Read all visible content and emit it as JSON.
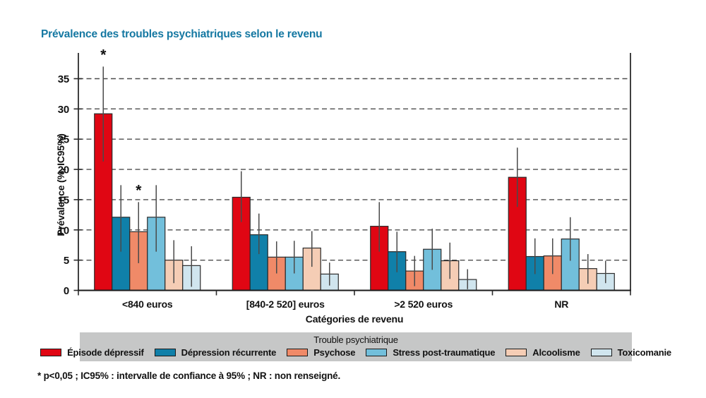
{
  "chart_data": {
    "type": "bar",
    "title": "Prévalence des troubles psychiatriques selon le revenu",
    "title_color": "#1578a2",
    "xlabel": "Catégories de revenu",
    "ylabel": "Prévalence (%, IC95%)",
    "ylim": [
      0,
      39
    ],
    "yticks": [
      0,
      5,
      10,
      15,
      20,
      25,
      30,
      35
    ],
    "grid": "horizontal-dashed",
    "error_bars": "IC95%",
    "significance_marker": "*",
    "legend_title": "Trouble psychiatrique",
    "legend_position": "bottom",
    "categories": [
      "<840 euros",
      "[840-2 520] euros",
      ">2 520 euros",
      "NR"
    ],
    "series": [
      {
        "name": "Épisode dépressif",
        "color": "#e00613",
        "values": [
          29.2,
          15.4,
          10.6,
          18.7
        ],
        "ci_low": [
          21.3,
          11.3,
          6.4,
          13.8
        ],
        "ci_high": [
          37.0,
          19.7,
          14.6,
          23.6
        ],
        "significant": [
          true,
          false,
          false,
          false
        ]
      },
      {
        "name": "Dépression récurrente",
        "color": "#1080a9",
        "values": [
          12.1,
          9.2,
          6.4,
          5.6
        ],
        "ci_low": [
          6.4,
          6.0,
          3.0,
          2.7
        ],
        "ci_high": [
          17.4,
          12.7,
          9.7,
          8.6
        ],
        "significant": [
          false,
          false,
          false,
          false
        ]
      },
      {
        "name": "Psychose",
        "color": "#f08a68",
        "values": [
          9.7,
          5.5,
          3.2,
          5.7
        ],
        "ci_low": [
          4.5,
          2.8,
          0.7,
          2.7
        ],
        "ci_high": [
          14.6,
          8.1,
          5.7,
          8.6
        ],
        "significant": [
          true,
          false,
          false,
          false
        ]
      },
      {
        "name": "Stress post-traumatique",
        "color": "#72bfdb",
        "values": [
          12.1,
          5.5,
          6.8,
          8.5
        ],
        "ci_low": [
          6.4,
          2.8,
          3.4,
          4.9
        ],
        "ci_high": [
          17.4,
          8.2,
          10.2,
          12.1
        ],
        "significant": [
          false,
          false,
          false,
          false
        ]
      },
      {
        "name": "Alcoolisme",
        "color": "#f5cdb5",
        "values": [
          5.0,
          7.0,
          4.9,
          3.6
        ],
        "ci_low": [
          1.2,
          3.9,
          1.9,
          1.1
        ],
        "ci_high": [
          8.3,
          9.8,
          7.9,
          6.0
        ],
        "significant": [
          false,
          false,
          false,
          false
        ]
      },
      {
        "name": "Toxicomanie",
        "color": "#d0e5ee",
        "values": [
          4.1,
          2.7,
          1.8,
          2.8
        ],
        "ci_low": [
          0.6,
          0.8,
          0.2,
          1.2
        ],
        "ci_high": [
          7.3,
          4.6,
          3.5,
          4.9
        ],
        "significant": [
          false,
          false,
          false,
          false
        ]
      }
    ],
    "footnote": "* p<0,05 ; IC95% : intervalle de confiance à 95% ; NR : non renseigné."
  },
  "colors": {
    "legend_background": "#c6c7c7",
    "gridline": "#4d4d4d",
    "axis": "#2b2b2b",
    "error_bar": "#4a4a4a",
    "text": "#111111"
  }
}
